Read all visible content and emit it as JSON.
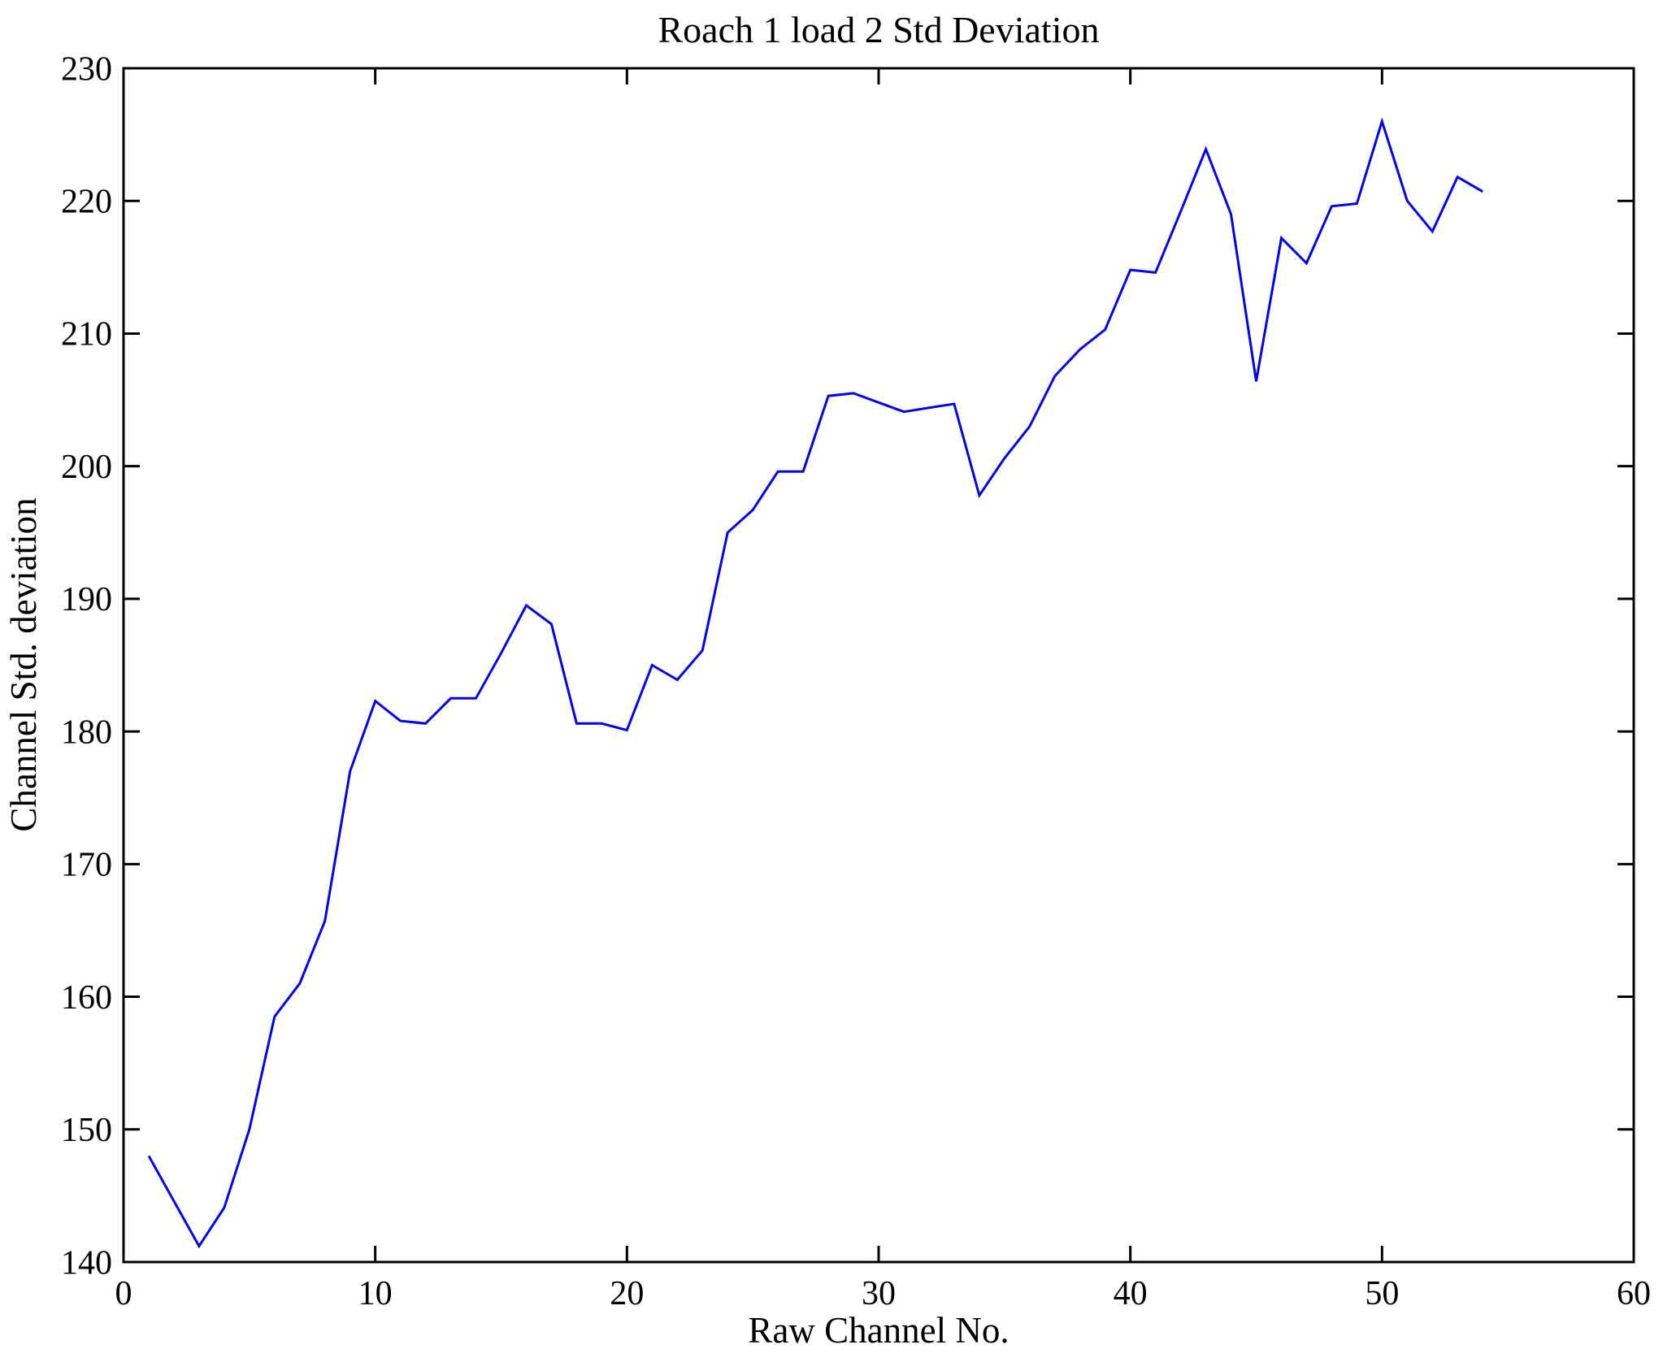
{
  "chart_data": {
    "type": "line",
    "title": "Roach 1 load 2 Std Deviation",
    "xlabel": "Raw Channel No.",
    "ylabel": "Channel Std. deviation",
    "xlim": [
      0,
      60
    ],
    "ylim": [
      140,
      230
    ],
    "xticks": [
      0,
      10,
      20,
      30,
      40,
      50,
      60
    ],
    "yticks": [
      140,
      150,
      160,
      170,
      180,
      190,
      200,
      210,
      220,
      230
    ],
    "grid": false,
    "legend": "none",
    "line_color": "#0000f2",
    "axis_color": "#000000",
    "background_color": "#ffffff",
    "series": [
      {
        "name": "channel-std-deviation",
        "x": [
          1,
          2,
          3,
          4,
          5,
          6,
          7,
          8,
          9,
          10,
          11,
          12,
          13,
          14,
          15,
          16,
          17,
          18,
          19,
          20,
          21,
          22,
          23,
          24,
          25,
          26,
          27,
          28,
          29,
          30,
          31,
          32,
          33,
          34,
          35,
          36,
          37,
          38,
          39,
          40,
          41,
          42,
          43,
          44,
          45,
          46,
          47,
          48,
          49,
          50,
          51,
          52,
          53,
          54
        ],
        "values": [
          148.0,
          144.6,
          141.2,
          144.1,
          150.0,
          158.5,
          161.0,
          165.7,
          177.0,
          182.3,
          180.8,
          180.6,
          182.5,
          182.5,
          185.9,
          189.5,
          188.1,
          180.6,
          180.6,
          180.1,
          185.0,
          183.9,
          186.1,
          195.0,
          196.7,
          199.6,
          199.6,
          205.3,
          205.5,
          204.8,
          204.1,
          204.4,
          204.7,
          197.8,
          200.6,
          203.0,
          206.8,
          208.8,
          210.3,
          214.8,
          214.6,
          219.2,
          223.9,
          219.0,
          206.4,
          217.2,
          215.3,
          219.6,
          219.8,
          226.0,
          220.0,
          217.7,
          221.8,
          220.7
        ]
      }
    ]
  }
}
